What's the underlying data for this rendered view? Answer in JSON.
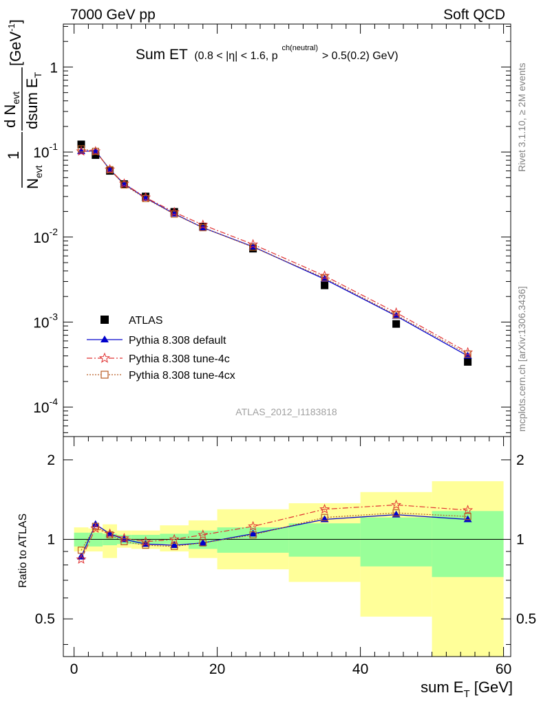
{
  "header": {
    "left": "7000 GeV pp",
    "right": "Soft QCD"
  },
  "side_labels": {
    "rivet": "Rivet 3.1.10, ≥ 2M events",
    "mcplots": "mcplots.cern.ch [arXiv:1306.3436]"
  },
  "colors": {
    "atlas": "#000000",
    "default": "#0000cc",
    "tune4c": "#e03030",
    "tune4cx": "#b85a20",
    "band_inner": "#99ff99",
    "band_outer": "#ffff99"
  },
  "chart_data": [
    {
      "type": "scatter",
      "panel": "main",
      "title_main": "Sum ET",
      "title_cuts": "(0.8 < |η| < 1.6, p",
      "title_sup": "ch(neutral)",
      "title_tail": " > 0.5(0.2) GeV)",
      "ylabel_num": "d N",
      "ylabel_num_sub": "evt",
      "ylabel_den": "dsum E",
      "ylabel_den_sub": "T",
      "ylabel_pre_num": "1",
      "ylabel_pre_den": "N",
      "ylabel_pre_den_sub": "evt",
      "ylabel_unit": "[GeV",
      "ylabel_unit_sup": "-1",
      "ylabel_unit_close": "]",
      "yscale": "log",
      "ylim": [
        4.5e-05,
        3.2
      ],
      "xlim": [
        -1.5,
        61
      ],
      "ytick_labels": [
        {
          "base": "10",
          "exp": "-4",
          "value": 0.0001
        },
        {
          "base": "10",
          "exp": "-3",
          "value": 0.001
        },
        {
          "base": "10",
          "exp": "-2",
          "value": 0.01
        },
        {
          "base": "10",
          "exp": "-1",
          "value": 0.1
        },
        {
          "base": "1",
          "exp": "",
          "value": 1
        }
      ],
      "watermark": "ATLAS_2012_I1183818",
      "legend_position": "bottom-left",
      "x": [
        1,
        3,
        5,
        7,
        10,
        14,
        18,
        25,
        35,
        45,
        55
      ],
      "series": [
        {
          "name": "ATLAS",
          "marker": "square-filled",
          "values": [
            0.123,
            0.092,
            0.06,
            0.042,
            0.03,
            0.0198,
            0.0133,
            0.0073,
            0.0027,
            0.00095,
            0.00034
          ]
        },
        {
          "name": "Pythia 8.308 default",
          "marker": "triangle-filled",
          "line": "solid",
          "values": [
            0.102,
            0.103,
            0.062,
            0.042,
            0.0288,
            0.0188,
            0.0129,
            0.0077,
            0.0032,
            0.00118,
            0.0004
          ]
        },
        {
          "name": "Pythia 8.308 tune-4c",
          "marker": "star-open",
          "line": "dashdot",
          "values": [
            0.102,
            0.102,
            0.0625,
            0.0425,
            0.0292,
            0.0196,
            0.0139,
            0.0082,
            0.0035,
            0.00129,
            0.00044
          ]
        },
        {
          "name": "Pythia 8.308 tune-4cx",
          "marker": "square-open",
          "line": "dotted",
          "values": [
            0.109,
            0.102,
            0.062,
            0.041,
            0.0284,
            0.0186,
            0.0129,
            0.0076,
            0.0033,
            0.00121,
            0.00042
          ]
        }
      ]
    },
    {
      "type": "line",
      "panel": "ratio",
      "ylabel": "Ratio to ATLAS",
      "xlabel_main": "sum E",
      "xlabel_sub": "T",
      "xlabel_unit": " [GeV]",
      "yscale": "log",
      "ylim": [
        0.36,
        2.45
      ],
      "xlim": [
        -1.5,
        61
      ],
      "ytick_labels": [
        {
          "label": "0.5",
          "value": 0.5
        },
        {
          "label": "1",
          "value": 1
        },
        {
          "label": "2",
          "value": 2
        }
      ],
      "xtick_labels": [
        {
          "label": "0",
          "value": 0
        },
        {
          "label": "20",
          "value": 20
        },
        {
          "label": "40",
          "value": 40
        },
        {
          "label": "60",
          "value": 60
        }
      ],
      "bins": [
        [
          0,
          2
        ],
        [
          2,
          4
        ],
        [
          4,
          6
        ],
        [
          6,
          8
        ],
        [
          8,
          12
        ],
        [
          12,
          16
        ],
        [
          16,
          20
        ],
        [
          20,
          30
        ],
        [
          30,
          40
        ],
        [
          40,
          50
        ],
        [
          50,
          60
        ]
      ],
      "band_inner": [
        [
          0.94,
          1.06
        ],
        [
          0.94,
          1.06
        ],
        [
          0.95,
          1.05
        ],
        [
          0.96,
          1.04
        ],
        [
          0.96,
          1.04
        ],
        [
          0.96,
          1.05
        ],
        [
          0.92,
          1.08
        ],
        [
          0.89,
          1.11
        ],
        [
          0.86,
          1.15
        ],
        [
          0.79,
          1.21
        ],
        [
          0.72,
          1.28
        ]
      ],
      "band_outer": [
        [
          0.9,
          1.11
        ],
        [
          0.9,
          1.1
        ],
        [
          0.85,
          1.14
        ],
        [
          0.93,
          1.08
        ],
        [
          0.92,
          1.08
        ],
        [
          0.9,
          1.13
        ],
        [
          0.85,
          1.18
        ],
        [
          0.77,
          1.3
        ],
        [
          0.69,
          1.37
        ],
        [
          0.51,
          1.51
        ],
        [
          0.34,
          1.66
        ]
      ],
      "x": [
        1,
        3,
        5,
        7,
        10,
        14,
        18,
        25,
        35,
        45,
        55
      ],
      "series": [
        {
          "name": "Pythia 8.308 default",
          "values": [
            0.86,
            1.14,
            1.05,
            1.0,
            0.96,
            0.95,
            0.97,
            1.05,
            1.19,
            1.24,
            1.19
          ]
        },
        {
          "name": "Pythia 8.308 tune-4c",
          "values": [
            0.84,
            1.1,
            1.05,
            1.01,
            0.98,
            1.0,
            1.04,
            1.12,
            1.3,
            1.35,
            1.29
          ]
        },
        {
          "name": "Pythia 8.308 tune-4cx",
          "values": [
            0.91,
            1.12,
            1.04,
            0.98,
            0.95,
            0.94,
            0.97,
            1.04,
            1.21,
            1.26,
            1.22
          ]
        }
      ]
    }
  ]
}
